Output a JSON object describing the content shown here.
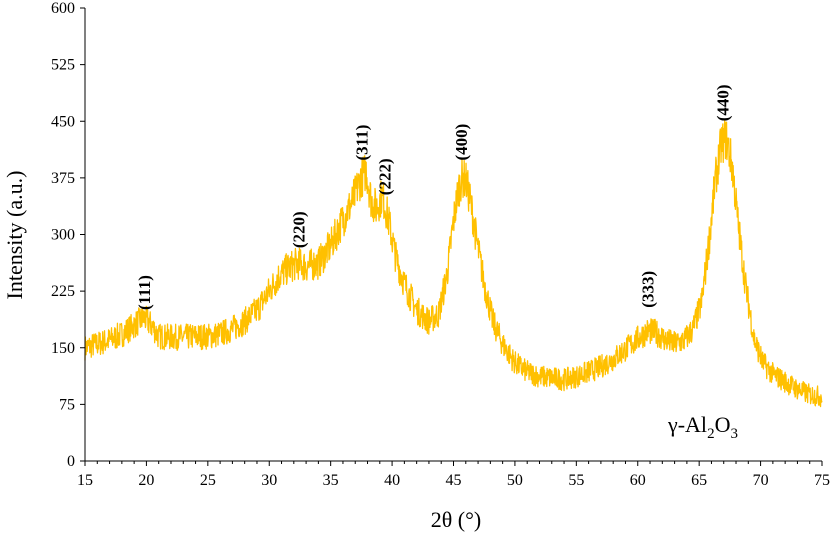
{
  "chart_data": {
    "type": "line",
    "title": "",
    "xlabel": "2θ (°)",
    "ylabel": "Intensity (a.u.)",
    "xlim": [
      15,
      75
    ],
    "ylim": [
      0,
      600
    ],
    "xticks": [
      "15",
      "20",
      "25",
      "30",
      "35",
      "40",
      "45",
      "50",
      "55",
      "60",
      "65",
      "70",
      "75"
    ],
    "yticks": [
      "0",
      "75",
      "150",
      "225",
      "300",
      "375",
      "450",
      "525",
      "600"
    ],
    "grid": false,
    "series": [
      {
        "name": "γ-Al2O3",
        "color": "#FFC000",
        "x": [
          15,
          16,
          17,
          18,
          19,
          19.8,
          20.5,
          21,
          22,
          23,
          24,
          25,
          26,
          27,
          28,
          29,
          30,
          30.8,
          31.5,
          32.3,
          33,
          34,
          35,
          36,
          36.8,
          37.4,
          37.9,
          38.3,
          38.7,
          39.2,
          39.7,
          40.3,
          41,
          42,
          43,
          43.8,
          44.5,
          45,
          45.4,
          45.7,
          46,
          46.4,
          46.9,
          47.5,
          48.2,
          49,
          50,
          51,
          52,
          53,
          54,
          55,
          56,
          57,
          58,
          59,
          60,
          60.8,
          61.5,
          62.3,
          63,
          63.8,
          64.5,
          65.2,
          65.8,
          66.3,
          66.8,
          67.2,
          67.7,
          68.2,
          68.8,
          69.5,
          70.2,
          71,
          72,
          73,
          74,
          75
        ],
        "y": [
          150,
          155,
          160,
          168,
          180,
          190,
          178,
          165,
          164,
          164,
          165,
          165,
          168,
          175,
          185,
          200,
          225,
          245,
          255,
          262,
          258,
          262,
          285,
          320,
          345,
          372,
          385,
          345,
          335,
          352,
          320,
          270,
          235,
          200,
          185,
          195,
          250,
          318,
          360,
          375,
          372,
          342,
          290,
          235,
          185,
          155,
          130,
          118,
          112,
          110,
          108,
          112,
          118,
          125,
          135,
          148,
          162,
          172,
          170,
          160,
          155,
          160,
          175,
          210,
          290,
          370,
          420,
          428,
          390,
          310,
          230,
          160,
          130,
          115,
          105,
          95,
          88,
          85
        ]
      }
    ],
    "peak_labels": [
      {
        "label": "(111)",
        "x": 19.8,
        "y": 200
      },
      {
        "label": "(220)",
        "x": 32.4,
        "y": 282
      },
      {
        "label": "(311)",
        "x": 37.5,
        "y": 398
      },
      {
        "label": "(222)",
        "x": 39.4,
        "y": 352
      },
      {
        "label": "(400)",
        "x": 45.6,
        "y": 398
      },
      {
        "label": "(333)",
        "x": 60.8,
        "y": 203
      },
      {
        "label": "(440)",
        "x": 66.9,
        "y": 450
      }
    ],
    "sample_label": {
      "prefix": "γ-Al",
      "sub1": "2",
      "mid": "O",
      "sub2": "3"
    }
  }
}
